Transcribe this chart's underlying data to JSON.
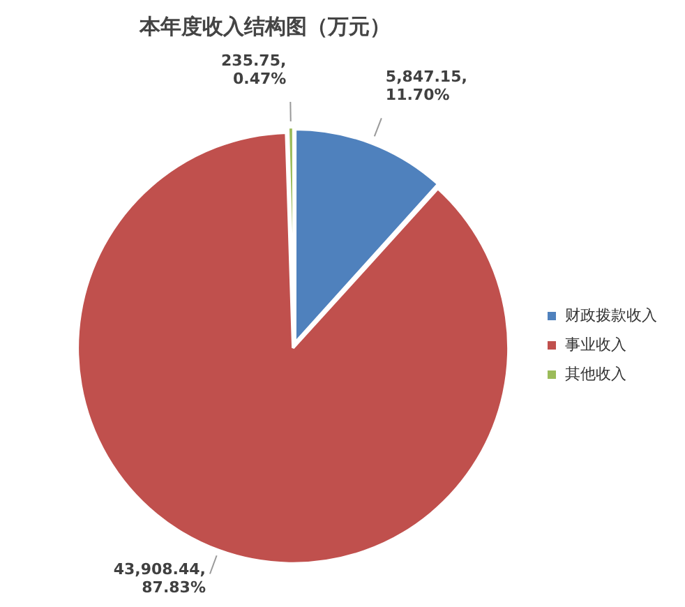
{
  "chart_data": {
    "type": "pie",
    "title": "本年度收入结构图（万元）",
    "categories": [
      "财政拨款收入",
      "事业收入",
      "其他收入"
    ],
    "values": [
      5847.15,
      43908.44,
      235.75
    ],
    "colors": [
      "#4f81bd",
      "#c0504d",
      "#9bbb59"
    ],
    "value_labels": [
      "5,847.15,\n11.70%",
      "43,908.44,\n87.83%",
      "235.75,\n0.47%"
    ],
    "legend": "right"
  }
}
